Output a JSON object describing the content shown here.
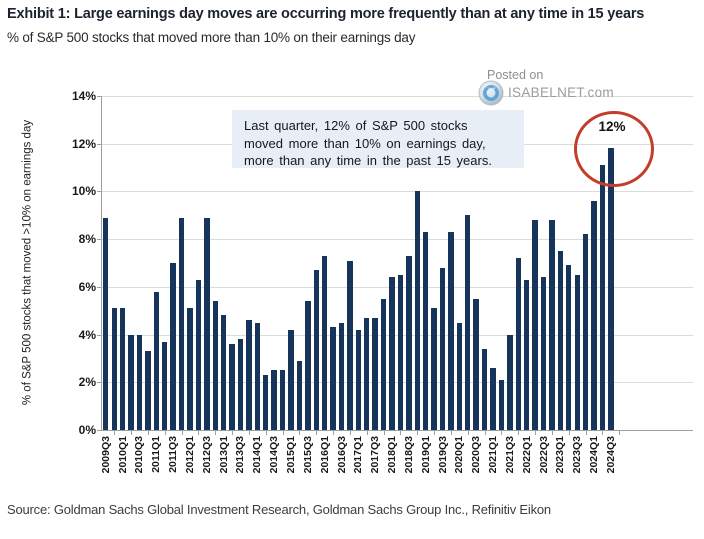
{
  "header": {
    "title": "Exhibit 1: Large earnings day moves are occurring more frequently than at any time in 15 years",
    "subtitle": "% of S&P 500 stocks that moved more than 10% on their earnings day"
  },
  "watermark": {
    "posted_on": "Posted on",
    "site": "ISABELNET.com",
    "logo_icon": "isabelnet-globe-icon"
  },
  "annotation": {
    "lines": [
      "Last quarter, 12% of S&P 500 stocks",
      "moved more than 10% on earnings day,",
      "more than any time in the past 15 years."
    ]
  },
  "callout": {
    "label": "12%"
  },
  "source": "Source: Goldman Sachs Global Investment Research, Goldman Sachs Group Inc., Refinitiv Eikon",
  "colors": {
    "bar": "#17355a",
    "annotation_bg": "#e8eef6",
    "callout_red": "#c33d2a",
    "gridline": "#dcdcdc",
    "axis": "#9e9e9e",
    "title_text": "#1c2230",
    "watermark_gray": "#8e8e8e"
  },
  "chart_data": {
    "type": "bar",
    "title": "Exhibit 1: Large earnings day moves are occurring more frequently than at any time in 15 years",
    "subtitle": "% of S&P 500 stocks that moved more than 10% on their earnings day",
    "xlabel": "",
    "ylabel": "% of S&P 500 stocks that moved >10% on earnings day",
    "ylim": [
      0,
      14
    ],
    "ytick_labels": [
      "0%",
      "2%",
      "4%",
      "6%",
      "8%",
      "10%",
      "12%",
      "14%"
    ],
    "grid": true,
    "legend": "none",
    "categories": [
      "2009Q3",
      "2009Q4",
      "2010Q1",
      "2010Q2",
      "2010Q3",
      "2010Q4",
      "2011Q1",
      "2011Q2",
      "2011Q3",
      "2011Q4",
      "2012Q1",
      "2012Q2",
      "2012Q3",
      "2012Q4",
      "2013Q1",
      "2013Q2",
      "2013Q3",
      "2013Q4",
      "2014Q1",
      "2014Q2",
      "2014Q3",
      "2014Q4",
      "2015Q1",
      "2015Q2",
      "2015Q3",
      "2015Q4",
      "2016Q1",
      "2016Q2",
      "2016Q3",
      "2016Q4",
      "2017Q1",
      "2017Q2",
      "2017Q3",
      "2017Q4",
      "2018Q1",
      "2018Q2",
      "2018Q3",
      "2018Q4",
      "2019Q1",
      "2019Q2",
      "2019Q3",
      "2019Q4",
      "2020Q1",
      "2020Q2",
      "2020Q3",
      "2020Q4",
      "2021Q1",
      "2021Q2",
      "2021Q3",
      "2021Q4",
      "2022Q1",
      "2022Q2",
      "2022Q3",
      "2022Q4",
      "2023Q1",
      "2023Q2",
      "2023Q3",
      "2023Q4",
      "2024Q1",
      "2024Q2",
      "2024Q3"
    ],
    "values": [
      8.9,
      5.1,
      5.1,
      4.0,
      4.0,
      3.3,
      5.8,
      3.7,
      7.0,
      8.9,
      5.1,
      6.3,
      8.9,
      5.4,
      4.8,
      3.6,
      3.8,
      4.6,
      4.5,
      2.3,
      2.5,
      2.5,
      4.2,
      2.9,
      5.4,
      6.7,
      7.3,
      4.3,
      4.5,
      7.1,
      4.2,
      4.7,
      4.7,
      5.5,
      6.4,
      6.5,
      7.3,
      10.0,
      8.3,
      5.1,
      6.8,
      8.3,
      4.5,
      9.0,
      5.5,
      3.4,
      2.6,
      2.1,
      4.0,
      7.2,
      6.3,
      8.8,
      6.4,
      8.8,
      7.5,
      6.9,
      6.5,
      8.2,
      9.6,
      11.1,
      11.8
    ],
    "xtick_labels": [
      "2009Q3",
      "2010Q1",
      "2010Q3",
      "2011Q1",
      "2011Q3",
      "2012Q1",
      "2012Q3",
      "2013Q1",
      "2013Q3",
      "2014Q1",
      "2014Q3",
      "2015Q1",
      "2015Q3",
      "2016Q1",
      "2016Q3",
      "2017Q1",
      "2017Q3",
      "2018Q1",
      "2018Q3",
      "2019Q1",
      "2019Q3",
      "2020Q1",
      "2020Q3",
      "2021Q1",
      "2021Q3",
      "2022Q1",
      "2022Q3",
      "2023Q1",
      "2023Q3",
      "2024Q1",
      "2024Q3"
    ],
    "highlighted_bar": {
      "category": "2024Q3",
      "label": "12%"
    }
  }
}
